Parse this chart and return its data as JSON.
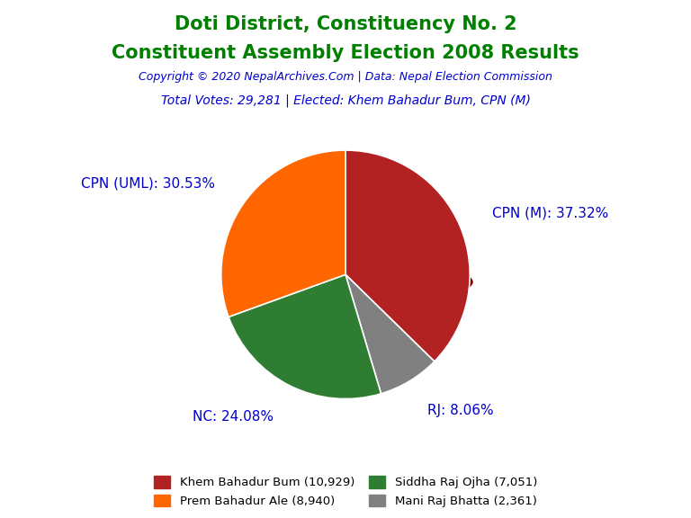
{
  "title_line1": "Doti District, Constituency No. 2",
  "title_line2": "Constituent Assembly Election 2008 Results",
  "title_color": "#008000",
  "copyright_text": "Copyright © 2020 NepalArchives.Com | Data: Nepal Election Commission",
  "copyright_color": "#0000cd",
  "info_text": "Total Votes: 29,281 | Elected: Khem Bahadur Bum, CPN (M)",
  "info_color": "#0000cd",
  "slices": [
    {
      "label": "CPN (M)",
      "pct": 37.32,
      "votes": 10929,
      "color": "#b22222"
    },
    {
      "label": "RJ",
      "pct": 8.06,
      "votes": 2361,
      "color": "#808080"
    },
    {
      "label": "NC",
      "pct": 24.08,
      "votes": 7051,
      "color": "#2e7d32"
    },
    {
      "label": "CPN (UML)",
      "pct": 30.53,
      "votes": 8940,
      "color": "#ff6600"
    }
  ],
  "legend_entries": [
    {
      "label": "Khem Bahadur Bum (10,929)",
      "color": "#b22222"
    },
    {
      "label": "Prem Bahadur Ale (8,940)",
      "color": "#ff6600"
    },
    {
      "label": "Siddha Raj Ojha (7,051)",
      "color": "#2e7d32"
    },
    {
      "label": "Mani Raj Bhatta (2,361)",
      "color": "#808080"
    }
  ],
  "label_color": "#0000cd",
  "background_color": "#ffffff",
  "startangle": 90,
  "shadow_color": "#8b0000",
  "label_fontsize": 11,
  "title_fontsize": 15
}
